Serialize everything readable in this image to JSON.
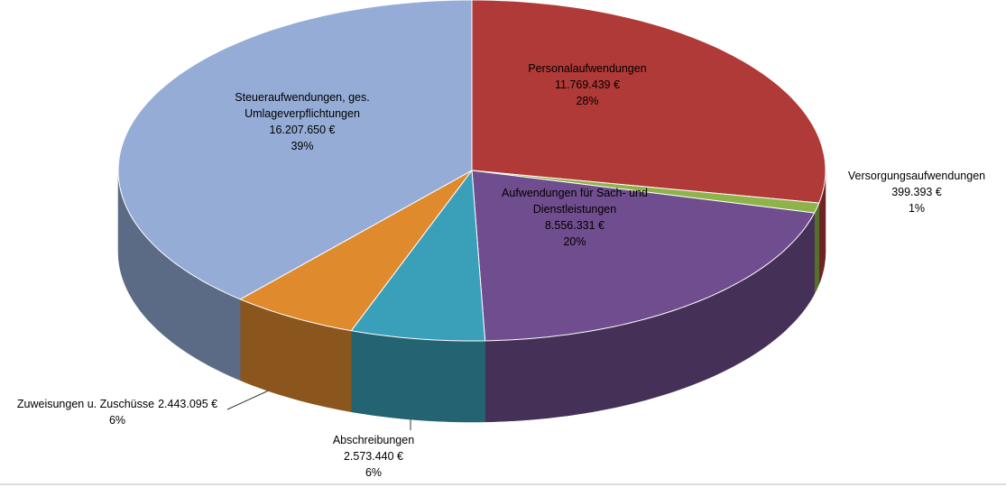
{
  "chart_data": {
    "type": "pie3d",
    "categories": [
      "Personalaufwendungen",
      "Versorgungsaufwendungen",
      "Aufwendungen für Sach- und Dienstleistungen",
      "Abschreibungen",
      "Zuweisungen u. Zuschüsse",
      "Steueraufwendungen, ges. Umlageverpflichtungen"
    ],
    "values": [
      11769439,
      399393,
      8556331,
      2573440,
      2443095,
      16207650
    ],
    "value_labels": [
      "11.769.439 €",
      "399.393 €",
      "8.556.331 €",
      "2.573.440 €",
      "2.443.095 €",
      "16.207.650 €"
    ],
    "percentages": [
      28,
      1,
      20,
      6,
      6,
      39
    ],
    "percentage_labels": [
      "28%",
      "1%",
      "20%",
      "6%",
      "6%",
      "39%"
    ],
    "colors": [
      "#b03a37",
      "#8db34a",
      "#6f4d8e",
      "#3a9fb8",
      "#e08a2e",
      "#95acd6"
    ]
  }
}
